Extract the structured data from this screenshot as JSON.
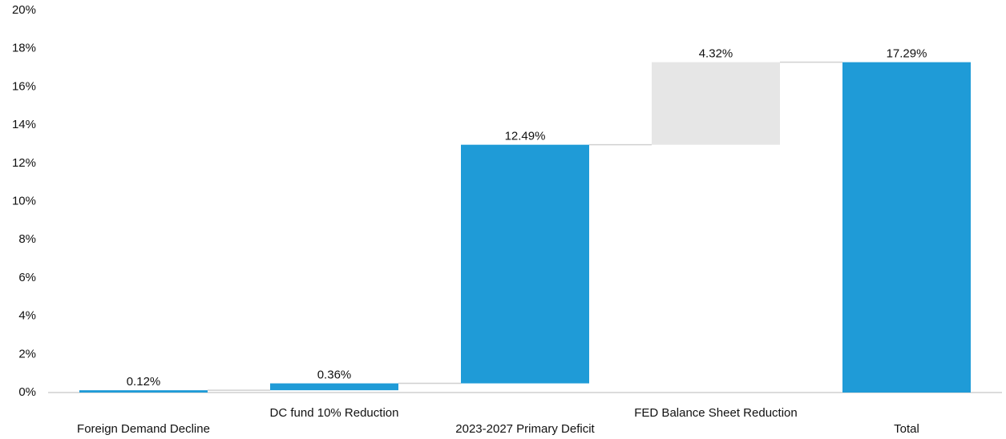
{
  "chart_data": {
    "type": "waterfall",
    "categories": [
      "Foreign Demand Decline",
      "DC fund 10% Reduction",
      "2023-2027 Primary Deficit",
      "FED Balance Sheet Reduction",
      "Total"
    ],
    "values": [
      0.12,
      0.36,
      12.49,
      4.32,
      17.29
    ],
    "value_labels": [
      "0.12%",
      "0.36%",
      "12.49%",
      "4.32%",
      "17.29%"
    ],
    "total": [
      false,
      false,
      false,
      false,
      true
    ],
    "colors": [
      "#1f9bd7",
      "#1f9bd7",
      "#1f9bd7",
      "#e6e6e6",
      "#1f9bd7"
    ],
    "ylim": [
      0,
      20
    ],
    "yticks": [
      {
        "value": 0,
        "label": "0%"
      },
      {
        "value": 2,
        "label": "2%"
      },
      {
        "value": 4,
        "label": "4%"
      },
      {
        "value": 6,
        "label": "6%"
      },
      {
        "value": 8,
        "label": "8%"
      },
      {
        "value": 10,
        "label": "10%"
      },
      {
        "value": 12,
        "label": "12%"
      },
      {
        "value": 14,
        "label": "14%"
      },
      {
        "value": 16,
        "label": "16%"
      },
      {
        "value": 18,
        "label": "18%"
      },
      {
        "value": 20,
        "label": "20%"
      }
    ],
    "grid": false
  }
}
